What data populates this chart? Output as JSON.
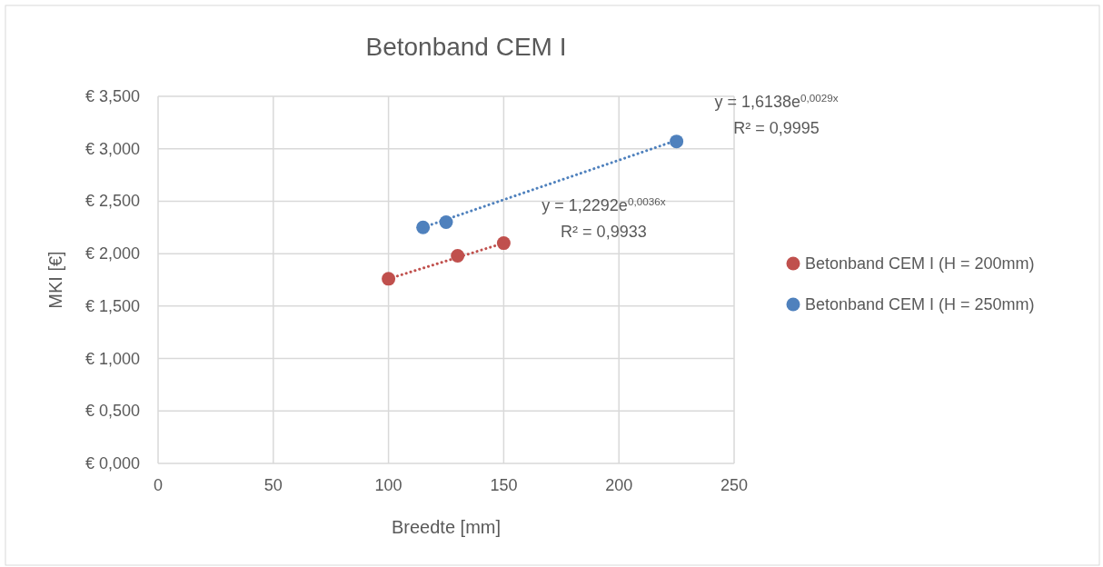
{
  "chart_data": {
    "type": "scatter",
    "title": "Betonband CEM I",
    "xlabel": "Breedte [mm]",
    "ylabel": "MKI [€]",
    "xlim": [
      0,
      250
    ],
    "xticks": [
      0,
      50,
      100,
      150,
      200,
      250
    ],
    "ylim": [
      0,
      3.5
    ],
    "yticks": [
      {
        "value": 0,
        "label": "€ 0,000"
      },
      {
        "value": 0.5,
        "label": "€ 0,500"
      },
      {
        "value": 1,
        "label": "€ 1,000"
      },
      {
        "value": 1.5,
        "label": "€ 1,500"
      },
      {
        "value": 2,
        "label": "€ 2,000"
      },
      {
        "value": 2.5,
        "label": "€ 2,500"
      },
      {
        "value": 3,
        "label": "€ 3,000"
      },
      {
        "value": 3.5,
        "label": "€ 3,500"
      }
    ],
    "grid": true,
    "legend": "right",
    "marker": "circle",
    "series": [
      {
        "name": "Betonband CEM I (H = 200mm)",
        "color": "#c0504d",
        "x": [
          100,
          130,
          150
        ],
        "values": [
          1.76,
          1.98,
          2.1
        ]
      },
      {
        "name": "Betonband CEM I (H = 250mm)",
        "color": "#4f81bd",
        "x": [
          115,
          125,
          225
        ],
        "values": [
          2.25,
          2.3,
          3.07
        ]
      },
      {
        "type": "line",
        "color": "#c0504d",
        "line_style": "dotted",
        "marker": "none",
        "x": [
          100,
          150
        ],
        "values": [
          1.76,
          2.1
        ]
      },
      {
        "type": "line",
        "color": "#4f81bd",
        "line_style": "dotted",
        "marker": "none",
        "x": [
          115,
          225
        ],
        "values": [
          2.25,
          3.08
        ]
      }
    ],
    "annotations": [
      "y = 1,6138e$^{0,0029x}$",
      "R² = 0,9995",
      "y = 1,2292e$^{0,0036x}$",
      "R² = 0,9933"
    ]
  }
}
